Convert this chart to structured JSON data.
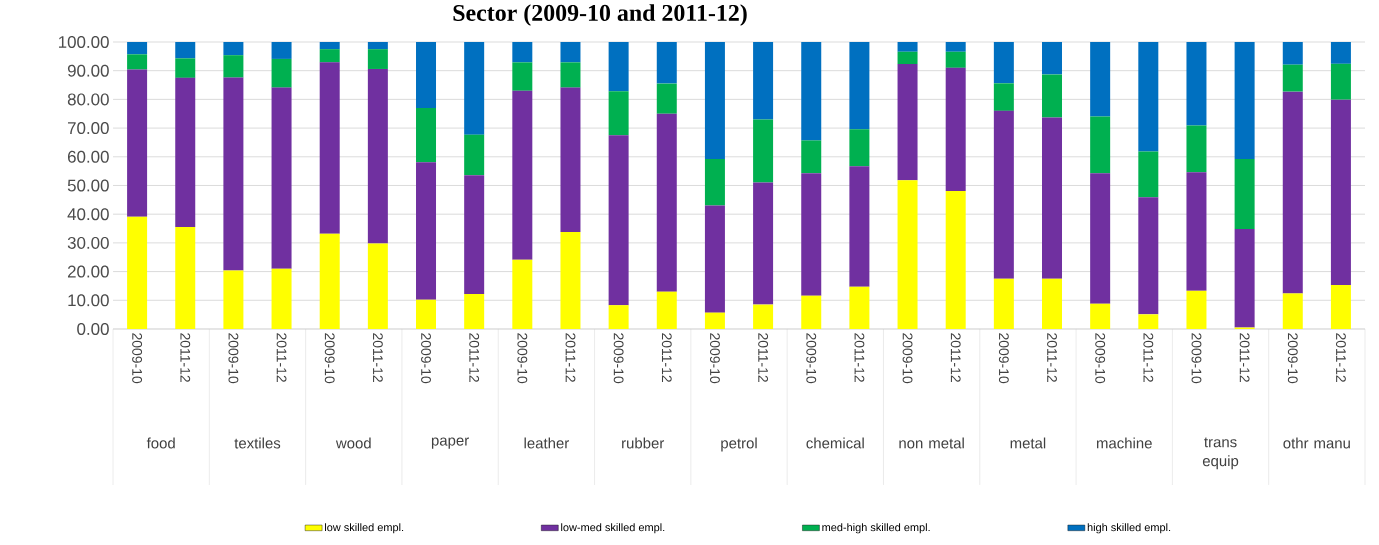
{
  "chart_data": {
    "type": "bar",
    "stacked": true,
    "title": "Sector (2009-10 and 2011-12)",
    "categories": [
      "2009-10",
      "2011-12",
      "2009-10",
      "2011-12",
      "2009-10",
      "2011-12",
      "2009-10",
      "2011-12",
      "2009-10",
      "2011-12",
      "2009-10",
      "2011-12",
      "2009-10",
      "2011-12",
      "2009-10",
      "2011-12",
      "2009-10",
      "2011-12",
      "2009-10",
      "2011-12",
      "2009-10",
      "2011-12",
      "2009-10",
      "2011-12",
      "2009-10",
      "2011-12"
    ],
    "annotations": [
      "food",
      "textiles",
      "wood",
      "paper",
      "leather",
      "rubber",
      "petrol",
      "chemical",
      "non metal",
      "metal",
      "machine",
      "trans equip",
      "othr manu"
    ],
    "series": [
      {
        "name": "low skilled empl.",
        "color": "#ffff00",
        "values": [
          39.1,
          35.5,
          20.4,
          21.0,
          33.2,
          29.8,
          10.2,
          12.2,
          24.1,
          33.8,
          8.3,
          13.0,
          5.7,
          8.5,
          11.6,
          14.7,
          51.8,
          48.1,
          17.5,
          17.5,
          8.8,
          5.1,
          13.3,
          0.5,
          12.4,
          15.3
        ]
      },
      {
        "name": "low-med skilled empl.",
        "color": "#7030a0",
        "values": [
          51.3,
          52.0,
          67.2,
          63.1,
          59.7,
          60.8,
          47.9,
          41.4,
          58.9,
          50.3,
          59.2,
          62.0,
          37.3,
          42.5,
          42.7,
          42.0,
          40.5,
          42.9,
          58.5,
          56.2,
          45.5,
          40.8,
          41.3,
          34.3,
          70.3,
          64.6
        ]
      },
      {
        "name": "med-high skilled empl.",
        "color": "#00b050",
        "values": [
          5.3,
          6.8,
          7.8,
          10.0,
          4.6,
          6.9,
          18.9,
          14.1,
          9.9,
          8.8,
          15.3,
          10.5,
          16.2,
          22.0,
          11.4,
          12.9,
          4.3,
          5.6,
          9.6,
          15.0,
          19.7,
          15.9,
          16.3,
          24.4,
          9.4,
          12.5
        ]
      },
      {
        "name": "high skilled empl.",
        "color": "#0070c0",
        "values": [
          4.3,
          5.7,
          4.6,
          5.9,
          2.5,
          2.5,
          23.0,
          32.3,
          7.1,
          7.1,
          17.2,
          14.5,
          40.8,
          27.0,
          34.3,
          30.4,
          3.4,
          3.4,
          14.4,
          11.3,
          26.0,
          38.2,
          29.1,
          40.8,
          7.9,
          7.6
        ]
      }
    ],
    "ylim": [
      0,
      100
    ],
    "yticks": [
      {
        "value": 0,
        "label": "0.00"
      },
      {
        "value": 10,
        "label": "10.00"
      },
      {
        "value": 20,
        "label": "20.00"
      },
      {
        "value": 30,
        "label": "30.00"
      },
      {
        "value": 40,
        "label": "40.00"
      },
      {
        "value": 50,
        "label": "50.00"
      },
      {
        "value": 60,
        "label": "60.00"
      },
      {
        "value": 70,
        "label": "70.00"
      },
      {
        "value": 80,
        "label": "80.00"
      },
      {
        "value": 90,
        "label": "90.00"
      },
      {
        "value": 100,
        "label": "100.00"
      }
    ],
    "grid": "y",
    "legend": "bottom"
  }
}
